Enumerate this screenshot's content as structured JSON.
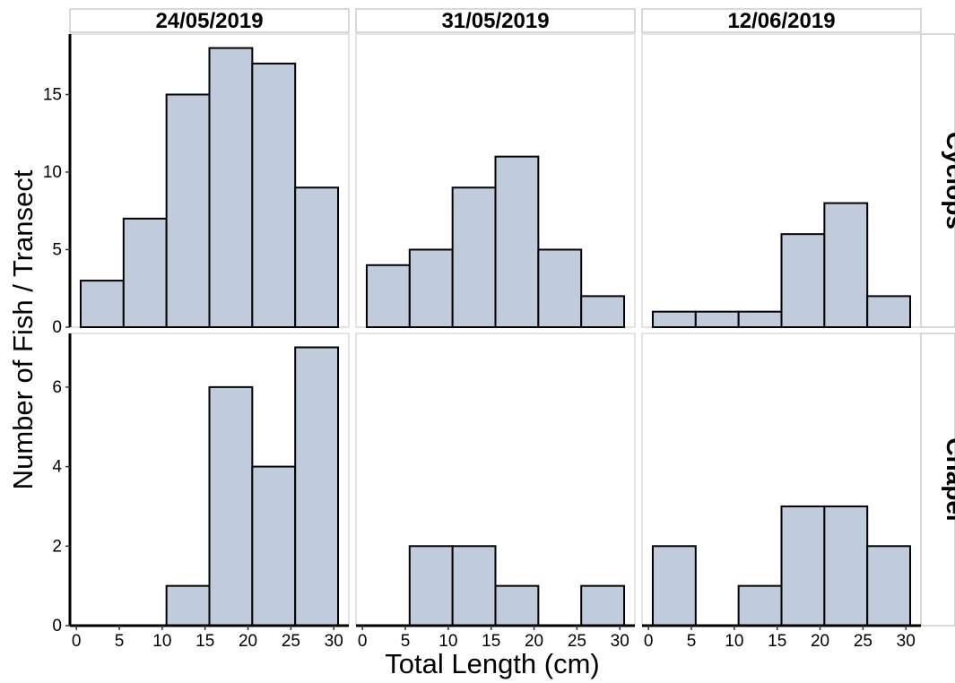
{
  "chart_data": {
    "type": "bar",
    "title": "",
    "xlabel": "Total Length (cm)",
    "ylabel": "Number of Fish / Transect",
    "facet_columns": [
      "24/05/2019",
      "31/05/2019",
      "12/06/2019"
    ],
    "facet_rows": [
      "Cyclops",
      "Chapel"
    ],
    "bins": [
      [
        0.5,
        5.5
      ],
      [
        5.5,
        10.5
      ],
      [
        10.5,
        15.5
      ],
      [
        15.5,
        20.5
      ],
      [
        20.5,
        25.5
      ],
      [
        25.5,
        30.5
      ]
    ],
    "x_ticks": [
      0,
      5,
      10,
      15,
      20,
      25,
      30
    ],
    "xlim": [
      -0.75,
      31.75
    ],
    "grid": false,
    "fill_color": "#c0ccdc",
    "edge_color": "#000000",
    "rows": [
      {
        "name": "Cyclops",
        "ylim": [
          0,
          18.9
        ],
        "y_ticks": [
          0,
          5,
          10,
          15
        ],
        "panels": [
          {
            "column": "24/05/2019",
            "values": [
              3,
              7,
              15,
              18,
              17,
              9
            ]
          },
          {
            "column": "31/05/2019",
            "values": [
              4,
              5,
              9,
              11,
              5,
              2
            ]
          },
          {
            "column": "12/06/2019",
            "values": [
              1,
              1,
              1,
              6,
              8,
              2
            ]
          }
        ]
      },
      {
        "name": "Chapel",
        "ylim": [
          0,
          7.35
        ],
        "y_ticks": [
          0,
          2,
          4,
          6
        ],
        "panels": [
          {
            "column": "24/05/2019",
            "values": [
              0,
              0,
              1,
              6,
              4,
              7
            ]
          },
          {
            "column": "31/05/2019",
            "values": [
              0,
              2,
              2,
              1,
              0,
              1
            ]
          },
          {
            "column": "12/06/2019",
            "values": [
              2,
              0,
              1,
              3,
              3,
              2
            ]
          }
        ]
      }
    ]
  }
}
